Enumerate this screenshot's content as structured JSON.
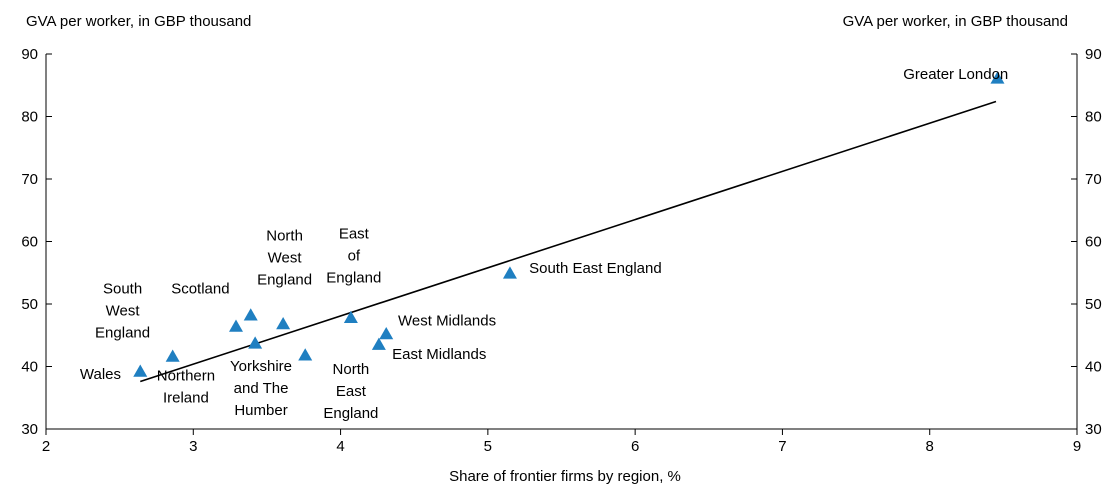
{
  "chart_data": {
    "type": "scatter",
    "ylabel_left": "GVA per worker, in GBP thousand",
    "ylabel_right": "GVA per worker, in GBP thousand",
    "xlabel": "Share of frontier firms by region, %",
    "xlim": [
      2,
      9
    ],
    "ylim": [
      30,
      90
    ],
    "x_ticks": [
      2,
      3,
      4,
      5,
      6,
      7,
      8,
      9
    ],
    "y_ticks": [
      30,
      40,
      50,
      60,
      70,
      80,
      90
    ],
    "grid": false,
    "marker_color": "#1f7fc1",
    "line_color": "#000000",
    "points": [
      {
        "label": "Wales",
        "x": 2.64,
        "y": 39.2
      },
      {
        "label": "South West England",
        "x": 2.86,
        "y": 41.6
      },
      {
        "label": "Northern Ireland",
        "x": 3.29,
        "y": 46.4
      },
      {
        "label": "Scotland",
        "x": 3.39,
        "y": 48.2
      },
      {
        "label": "Yorkshire and The Humber",
        "x": 3.42,
        "y": 43.7
      },
      {
        "label": "North West England",
        "x": 3.61,
        "y": 46.8
      },
      {
        "label": "North East England",
        "x": 3.76,
        "y": 41.8
      },
      {
        "label": "East of England",
        "x": 4.07,
        "y": 47.8
      },
      {
        "label": "East Midlands",
        "x": 4.26,
        "y": 43.5
      },
      {
        "label": "West Midlands",
        "x": 4.31,
        "y": 45.2
      },
      {
        "label": "South East England",
        "x": 5.15,
        "y": 54.9
      },
      {
        "label": "Greater London",
        "x": 8.46,
        "y": 86.1
      }
    ],
    "trendline": {
      "x": [
        2.64,
        8.45
      ],
      "y": [
        37.6,
        82.4
      ]
    },
    "labels": [
      {
        "lines": [
          "Wales"
        ],
        "x": 2.23,
        "y": 38.0,
        "anchor": "start"
      },
      {
        "lines": [
          "South",
          "West",
          "England"
        ],
        "x": 2.52,
        "y": 51.7,
        "anchor": "middle"
      },
      {
        "lines": [
          "Scotland"
        ],
        "x": 2.85,
        "y": 51.7,
        "anchor": "start"
      },
      {
        "lines": [
          "North",
          "West",
          "England"
        ],
        "x": 3.62,
        "y": 60.2,
        "anchor": "middle"
      },
      {
        "lines": [
          "East",
          "of",
          "England"
        ],
        "x": 4.09,
        "y": 60.5,
        "anchor": "middle"
      },
      {
        "lines": [
          "Northern",
          "Ireland"
        ],
        "x": 2.95,
        "y": 37.8,
        "anchor": "middle"
      },
      {
        "lines": [
          "Yorkshire",
          "and The",
          "Humber"
        ],
        "x": 3.46,
        "y": 39.3,
        "anchor": "middle"
      },
      {
        "lines": [
          "North",
          "East",
          "England"
        ],
        "x": 4.07,
        "y": 38.8,
        "anchor": "middle"
      },
      {
        "lines": [
          "West Midlands"
        ],
        "x": 4.39,
        "y": 46.6,
        "anchor": "start"
      },
      {
        "lines": [
          "East Midlands"
        ],
        "x": 4.35,
        "y": 41.2,
        "anchor": "start"
      },
      {
        "lines": [
          "South East England"
        ],
        "x": 5.28,
        "y": 55.0,
        "anchor": "start"
      },
      {
        "lines": [
          "Greater London"
        ],
        "x": 7.82,
        "y": 86.0,
        "anchor": "start"
      }
    ]
  }
}
